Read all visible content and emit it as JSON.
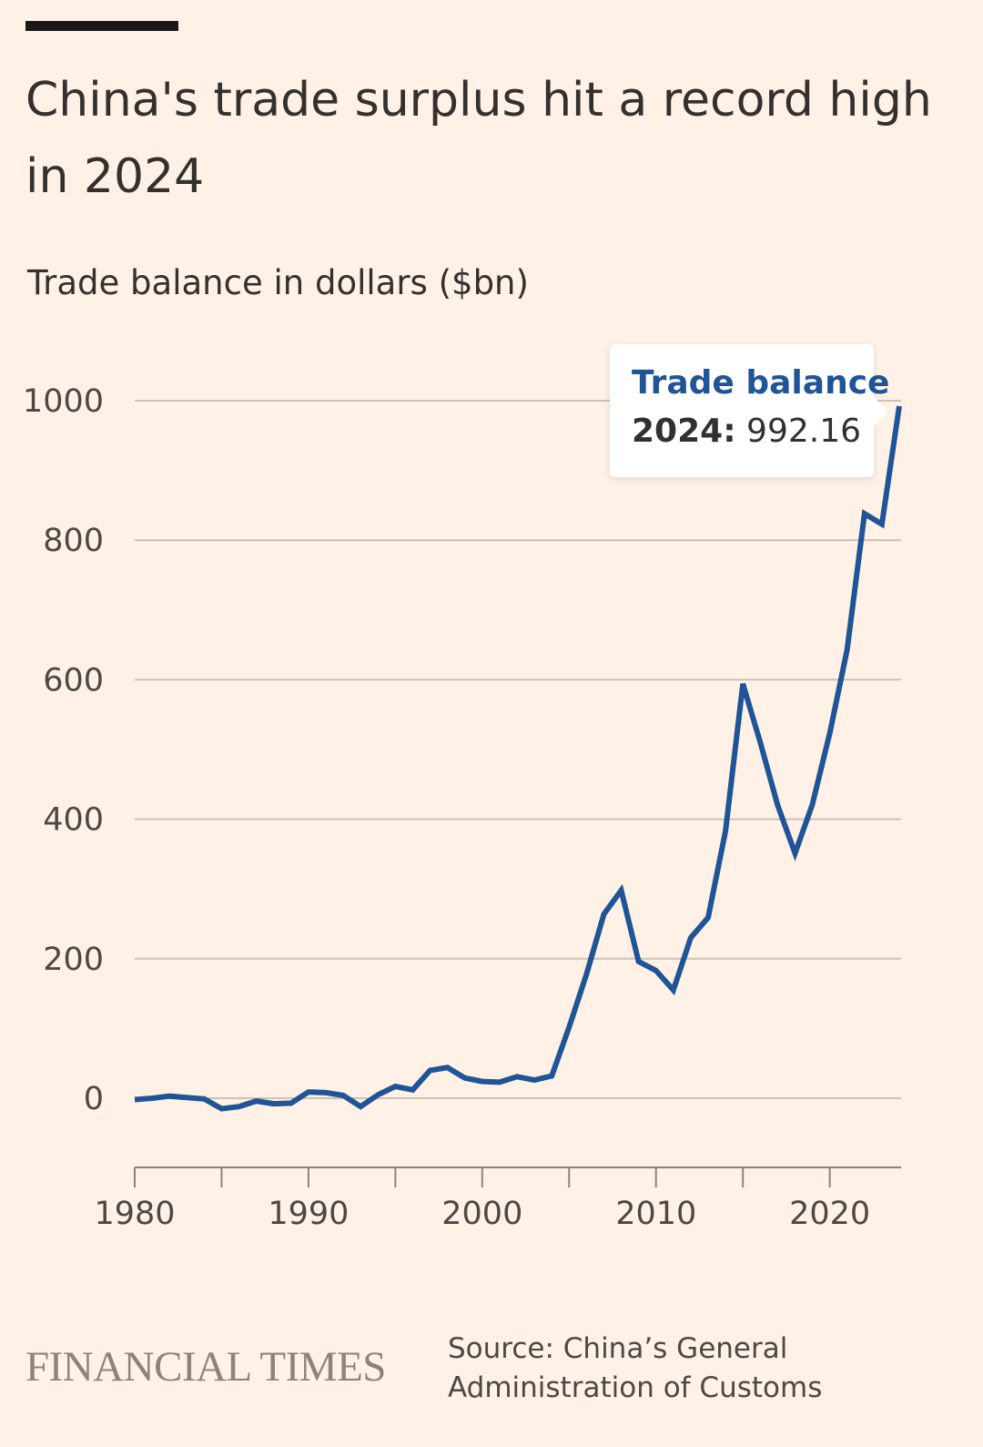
{
  "header": {
    "title": "China's trade surplus hit a record high in 2024",
    "subtitle": "Trade balance in dollars ($bn)"
  },
  "tooltip": {
    "series": "Trade balance",
    "year": "2024:",
    "value": "992.16"
  },
  "footer": {
    "logo_text": "FINANCIAL TIMES",
    "source": "Source: China’s General Administration of Customs"
  },
  "colors": {
    "background": "#fff1e5",
    "line": "#1f5496",
    "gridline": "#ccc1b7",
    "text": "#33302e"
  },
  "chart_data": {
    "type": "line",
    "title": "China's trade surplus hit a record high in 2024",
    "ylabel": "Trade balance in dollars ($bn)",
    "xlabel": "",
    "xlim": [
      1980,
      2024
    ],
    "ylim": [
      -100,
      1000
    ],
    "yticks": [
      0,
      200,
      400,
      600,
      800,
      1000
    ],
    "xticks": [
      1980,
      1990,
      2000,
      2010,
      2020
    ],
    "grid": true,
    "series": [
      {
        "name": "Trade balance",
        "x": [
          1980,
          1981,
          1982,
          1983,
          1984,
          1985,
          1986,
          1987,
          1988,
          1989,
          1990,
          1991,
          1992,
          1993,
          1994,
          1995,
          1996,
          1997,
          1998,
          1999,
          2000,
          2001,
          2002,
          2003,
          2004,
          2005,
          2006,
          2007,
          2008,
          2009,
          2010,
          2011,
          2012,
          2013,
          2014,
          2015,
          2016,
          2017,
          2018,
          2019,
          2020,
          2021,
          2022,
          2023,
          2024
        ],
        "values": [
          -2,
          0,
          3,
          1,
          -1,
          -15,
          -12,
          -4,
          -8,
          -7,
          9,
          8,
          4,
          -12,
          5,
          17,
          12,
          40,
          44,
          29,
          24,
          23,
          31,
          26,
          32,
          102,
          178,
          264,
          298,
          196,
          183,
          155,
          230,
          259,
          383,
          594,
          510,
          420,
          351,
          421,
          523,
          643,
          838,
          823,
          992.16
        ]
      }
    ]
  }
}
